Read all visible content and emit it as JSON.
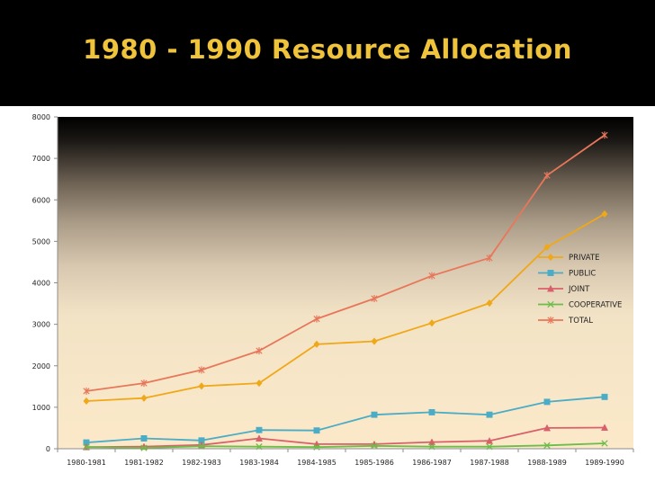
{
  "slide": {
    "title": "1980 - 1990 Resource Allocation"
  },
  "colors": {
    "title": "#f0c43a",
    "private": "#f0a818",
    "public": "#4bacc6",
    "joint": "#d9606a",
    "cooperative": "#6cbd4a",
    "total": "#e8775a"
  },
  "chart_data": {
    "type": "line",
    "title": "1980 - 1990 Resource Allocation",
    "xlabel": "",
    "ylabel": "",
    "categories": [
      "1980-1981",
      "1981-1982",
      "1982-1983",
      "1983-1984",
      "1984-1985",
      "1985-1986",
      "1986-1987",
      "1987-1988",
      "1988-1989",
      "1989-1990"
    ],
    "ylim": [
      0,
      8000
    ],
    "yticks": [
      "0",
      "1000",
      "2000",
      "3000",
      "4000",
      "5000",
      "6000",
      "7000",
      "8000"
    ],
    "grid": false,
    "legend_position": "right",
    "series": [
      {
        "name": "PRIVATE",
        "marker": "diamond",
        "color": "#f0a818",
        "values": [
          1150,
          1220,
          1510,
          1580,
          2520,
          2590,
          3030,
          3510,
          4860,
          5660
        ]
      },
      {
        "name": "PUBLIC",
        "marker": "square",
        "color": "#4bacc6",
        "values": [
          150,
          250,
          200,
          450,
          440,
          820,
          880,
          820,
          1130,
          1250
        ]
      },
      {
        "name": "JOINT",
        "marker": "triangle",
        "color": "#d9606a",
        "values": [
          40,
          50,
          90,
          250,
          110,
          110,
          160,
          190,
          500,
          510
        ]
      },
      {
        "name": "COOPERATIVE",
        "marker": "x",
        "color": "#6cbd4a",
        "values": [
          40,
          20,
          60,
          50,
          40,
          70,
          50,
          50,
          80,
          130
        ]
      },
      {
        "name": "TOTAL",
        "marker": "star",
        "color": "#e8775a",
        "values": [
          1390,
          1580,
          1900,
          2360,
          3130,
          3620,
          4170,
          4600,
          6590,
          7560
        ]
      }
    ]
  }
}
